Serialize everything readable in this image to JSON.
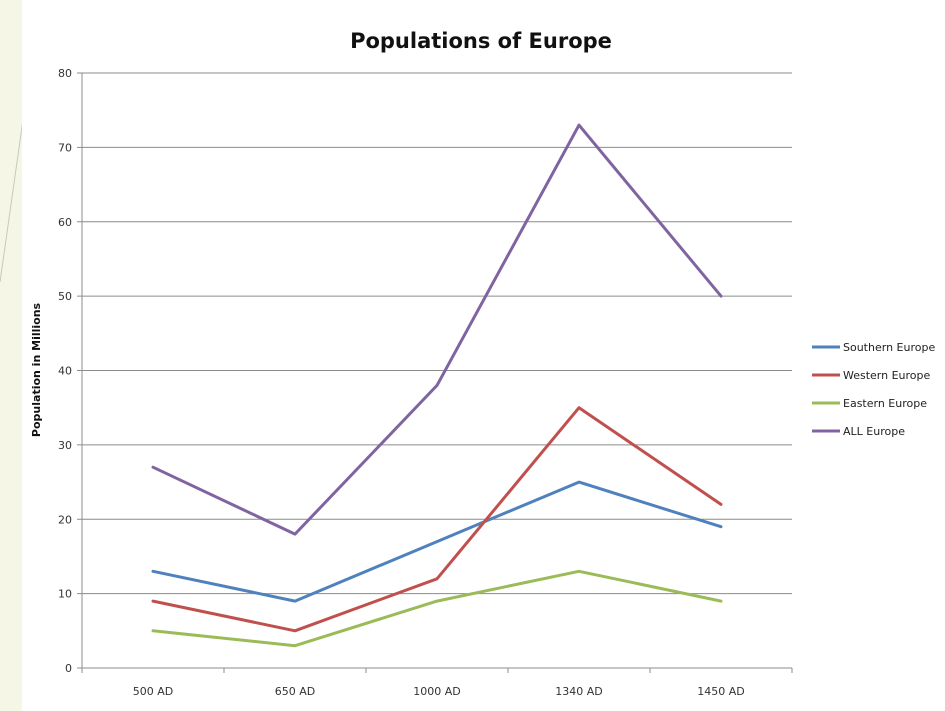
{
  "chart_data": {
    "type": "line",
    "title": "Populations of Europe",
    "xlabel": "",
    "ylabel": "Population in Millions",
    "categories": [
      "500 AD",
      "650 AD",
      "1000 AD",
      "1340 AD",
      "1450 AD"
    ],
    "ylim": [
      0,
      80
    ],
    "yticks": [
      "0",
      "10",
      "20",
      "30",
      "40",
      "50",
      "60",
      "70",
      "80"
    ],
    "grid": true,
    "legend_position": "right",
    "series": [
      {
        "name": "Southern Europe",
        "color": "#4f81bd",
        "values": [
          13,
          9,
          17,
          25,
          19
        ]
      },
      {
        "name": "Western Europe",
        "color": "#c0504d",
        "values": [
          9,
          5,
          12,
          35,
          22
        ]
      },
      {
        "name": "Eastern Europe",
        "color": "#9bbb59",
        "values": [
          5,
          3,
          9,
          13,
          9
        ]
      },
      {
        "name": "ALL Europe",
        "color": "#8064a2",
        "values": [
          27,
          18,
          38,
          73,
          50
        ]
      }
    ]
  }
}
